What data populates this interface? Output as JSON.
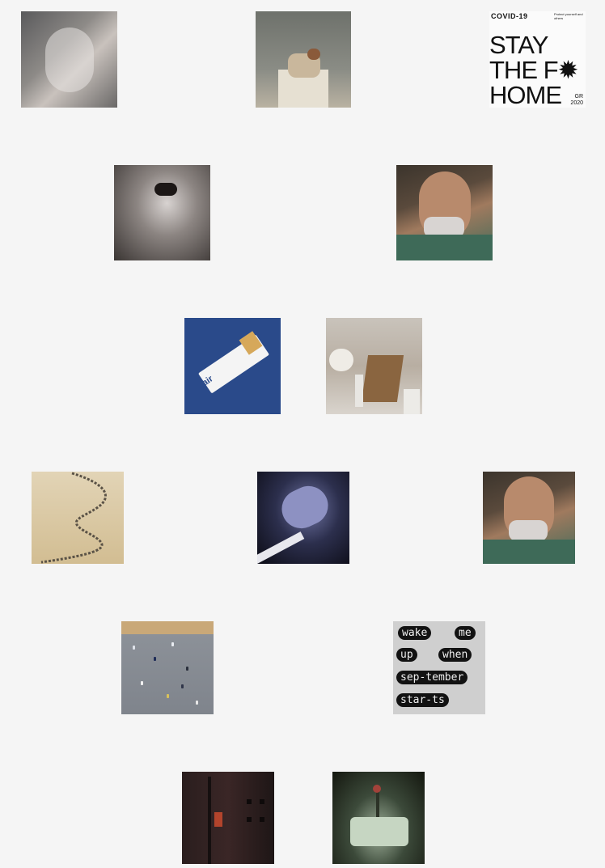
{
  "gallery": {
    "tiles": [
      {
        "id": "t1",
        "name": "gallery-image-1"
      },
      {
        "id": "t2",
        "name": "gallery-image-2"
      },
      {
        "id": "t3",
        "name": "gallery-image-3"
      },
      {
        "id": "t4",
        "name": "gallery-image-4"
      },
      {
        "id": "t5",
        "name": "gallery-image-5"
      },
      {
        "id": "t6",
        "name": "gallery-image-6"
      },
      {
        "id": "t7",
        "name": "gallery-image-7"
      },
      {
        "id": "t8",
        "name": "gallery-image-8"
      },
      {
        "id": "t9",
        "name": "gallery-image-9"
      },
      {
        "id": "t10",
        "name": "gallery-image-10"
      },
      {
        "id": "t11",
        "name": "gallery-image-11"
      },
      {
        "id": "t12",
        "name": "gallery-image-12"
      },
      {
        "id": "t13",
        "name": "gallery-image-13"
      },
      {
        "id": "t14",
        "name": "gallery-image-14"
      }
    ]
  },
  "poster_covid": {
    "top_label": "COVID-19",
    "note": "Protect yourself and others",
    "line1": "STAY",
    "line2": "THE F✹",
    "line3": "HOME",
    "foot_line1": "GR",
    "foot_line2": "2020"
  },
  "poster_air": {
    "label": "air"
  },
  "poster_wake": {
    "w1": "wake",
    "w2": "me",
    "w3": "up",
    "w4": "when",
    "w5": "sep-tember",
    "w6": "star-ts"
  },
  "colors": {
    "background": "#f5f5f5",
    "air_blue": "#2a4a8a",
    "pill_black": "#121212"
  }
}
